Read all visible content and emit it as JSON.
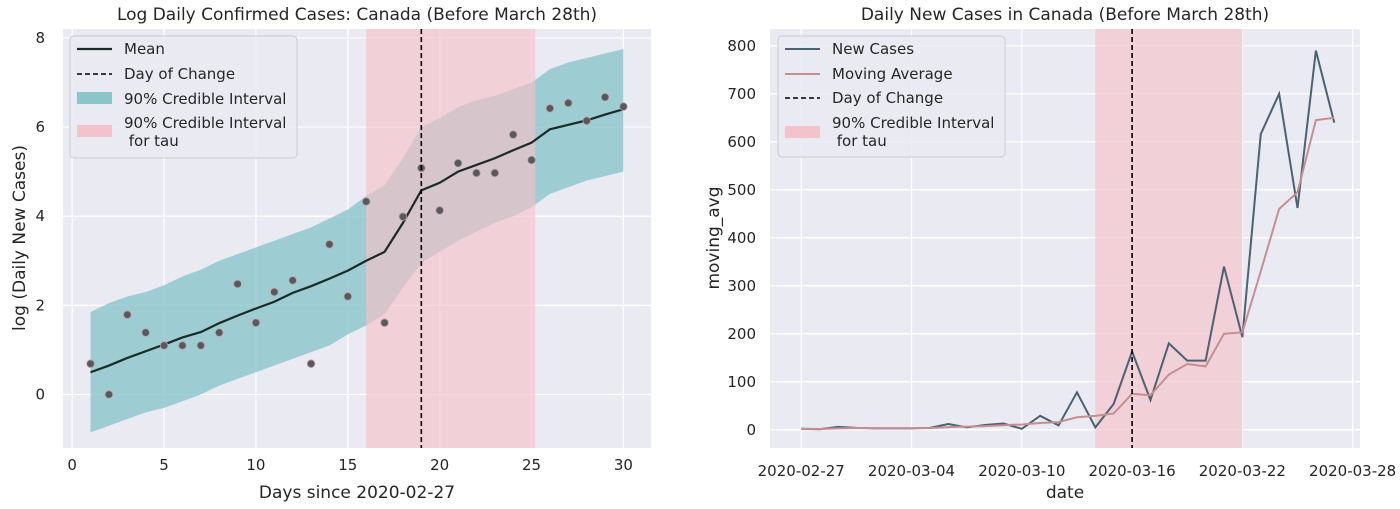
{
  "colors": {
    "background": "#eaeaf2",
    "grid": "#ffffff",
    "mean_line": "#1b2b26",
    "points": "#555a5e",
    "points_edge": "#bf9aa0",
    "credible_fill": "#8ac6c9",
    "tau_fill": "#f4c2ca",
    "overlap_fill": "#b4aeb0",
    "new_cases_line": "#4a6272",
    "moving_avg_line": "#c58f92",
    "change_line": "#000000"
  },
  "chart_data": [
    {
      "type": "scatter",
      "title": "Log Daily Confirmed Cases: Canada (Before March 28th)",
      "xlabel": "Days since 2020-02-27",
      "ylabel": "log (Daily New Cases)",
      "xlim": [
        -0.5,
        31.5
      ],
      "ylim": [
        -1.2,
        8.2
      ],
      "xticks": [
        0,
        5,
        10,
        15,
        20,
        25,
        30
      ],
      "yticks": [
        0,
        2,
        4,
        6,
        8
      ],
      "grid": true,
      "legend_position": "top-left",
      "legend": {
        "mean": "Mean",
        "change": "Day of Change",
        "ci": "90% Credible Interval",
        "tau_line1": "90% Credible Interval",
        "tau_line2": " for tau"
      },
      "day_of_change": 19,
      "tau_interval": [
        16,
        25.2
      ],
      "points": {
        "x": [
          1,
          2,
          3,
          4,
          5,
          6,
          7,
          8,
          9,
          10,
          11,
          12,
          13,
          14,
          15,
          16,
          17,
          18,
          19,
          20,
          21,
          22,
          23,
          24,
          25,
          26,
          27,
          28,
          29,
          30
        ],
        "y": [
          0.69,
          0.0,
          1.79,
          1.39,
          1.1,
          1.1,
          1.1,
          1.39,
          2.48,
          1.61,
          2.3,
          2.56,
          0.69,
          3.37,
          2.2,
          4.33,
          1.61,
          3.99,
          5.08,
          4.13,
          5.19,
          4.97,
          4.97,
          5.83,
          5.26,
          6.42,
          6.54,
          6.14,
          6.67,
          6.46
        ]
      },
      "mean": {
        "x": [
          1,
          2,
          3,
          4,
          5,
          6,
          7,
          8,
          9,
          10,
          11,
          12,
          13,
          14,
          15,
          16,
          17,
          18,
          19,
          20,
          21,
          22,
          23,
          24,
          25,
          26,
          27,
          28,
          29,
          30
        ],
        "y": [
          0.5,
          0.65,
          0.82,
          0.97,
          1.12,
          1.28,
          1.4,
          1.6,
          1.77,
          1.93,
          2.08,
          2.28,
          2.43,
          2.6,
          2.78,
          3.0,
          3.2,
          3.85,
          4.58,
          4.75,
          5.0,
          5.15,
          5.3,
          5.48,
          5.65,
          5.95,
          6.05,
          6.15,
          6.28,
          6.4
        ]
      },
      "ci_lower": [
        -0.85,
        -0.7,
        -0.55,
        -0.4,
        -0.3,
        -0.15,
        0.0,
        0.2,
        0.35,
        0.5,
        0.65,
        0.8,
        0.95,
        1.1,
        1.35,
        1.55,
        1.8,
        2.4,
        2.95,
        3.2,
        3.45,
        3.65,
        3.85,
        4.0,
        4.2,
        4.5,
        4.65,
        4.8,
        4.9,
        5.0
      ],
      "ci_upper": [
        1.85,
        2.05,
        2.2,
        2.3,
        2.45,
        2.65,
        2.8,
        3.0,
        3.15,
        3.3,
        3.45,
        3.6,
        3.75,
        3.95,
        4.15,
        4.45,
        4.7,
        5.3,
        6.0,
        6.2,
        6.45,
        6.6,
        6.7,
        6.85,
        7.0,
        7.3,
        7.45,
        7.55,
        7.65,
        7.75
      ]
    },
    {
      "type": "line",
      "title": "Daily New Cases in Canada (Before March 28th)",
      "xlabel": "date",
      "ylabel": "moving_avg",
      "x_start_date": "2020-02-27",
      "xlim_days": [
        -1.7,
        30.4
      ],
      "ylim": [
        -38,
        835
      ],
      "xtick_labels": [
        "2020-02-27",
        "2020-03-04",
        "2020-03-10",
        "2020-03-16",
        "2020-03-22",
        "2020-03-28"
      ],
      "yticks": [
        0,
        100,
        200,
        300,
        400,
        500,
        600,
        700,
        800
      ],
      "grid": true,
      "legend_position": "top-left",
      "legend": {
        "new_cases": "New Cases",
        "moving_avg": "Moving Average",
        "change": "Day of Change",
        "tau_line1": "90% Credible Interval",
        "tau_line2": " for tau"
      },
      "day_of_change": "2020-03-16",
      "tau_interval": [
        "2020-03-14",
        "2020-03-22"
      ],
      "series": [
        {
          "name": "New Cases",
          "x": [
            "2020-02-27",
            "2020-02-28",
            "2020-02-29",
            "2020-03-01",
            "2020-03-02",
            "2020-03-03",
            "2020-03-04",
            "2020-03-05",
            "2020-03-06",
            "2020-03-07",
            "2020-03-08",
            "2020-03-09",
            "2020-03-10",
            "2020-03-11",
            "2020-03-12",
            "2020-03-13",
            "2020-03-14",
            "2020-03-15",
            "2020-03-16",
            "2020-03-17",
            "2020-03-18",
            "2020-03-19",
            "2020-03-20",
            "2020-03-21",
            "2020-03-22",
            "2020-03-23",
            "2020-03-24",
            "2020-03-25",
            "2020-03-26",
            "2020-03-27"
          ],
          "values": [
            2,
            1,
            6,
            4,
            3,
            3,
            3,
            4,
            12,
            5,
            10,
            13,
            2,
            29,
            9,
            78,
            5,
            54,
            163,
            62,
            180,
            144,
            144,
            340,
            193,
            616,
            700,
            462,
            790,
            640
          ]
        },
        {
          "name": "Moving Average",
          "x": [
            "2020-02-27",
            "2020-02-28",
            "2020-02-29",
            "2020-03-01",
            "2020-03-02",
            "2020-03-03",
            "2020-03-04",
            "2020-03-05",
            "2020-03-06",
            "2020-03-07",
            "2020-03-08",
            "2020-03-09",
            "2020-03-10",
            "2020-03-11",
            "2020-03-12",
            "2020-03-13",
            "2020-03-14",
            "2020-03-15",
            "2020-03-16",
            "2020-03-17",
            "2020-03-18",
            "2020-03-19",
            "2020-03-20",
            "2020-03-21",
            "2020-03-22",
            "2020-03-23",
            "2020-03-24",
            "2020-03-25",
            "2020-03-26",
            "2020-03-27"
          ],
          "values": [
            2,
            1.5,
            3,
            3.7,
            3.3,
            3.3,
            3.4,
            3.5,
            5.5,
            6.5,
            7.5,
            9.5,
            11,
            14,
            16,
            26,
            29,
            34,
            75,
            72,
            115,
            137,
            132,
            200,
            203,
            330,
            460,
            495,
            645,
            650
          ]
        }
      ]
    }
  ]
}
